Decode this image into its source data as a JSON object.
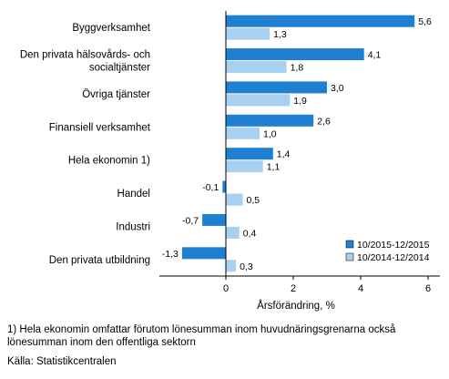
{
  "chart_data": {
    "type": "bar",
    "orientation": "horizontal",
    "categories": [
      [
        "Byggverksamhet"
      ],
      [
        "Den privata hälsovårds- och",
        "socialtjänster"
      ],
      [
        "Övriga tjänster"
      ],
      [
        "Finansiell verksamhet"
      ],
      [
        "Hela ekonomin 1)"
      ],
      [
        "Handel"
      ],
      [
        "Industri"
      ],
      [
        "Den privata utbildning"
      ]
    ],
    "series": [
      {
        "name": "10/2015-12/2015",
        "color": "#1f7fd0",
        "values": [
          5.6,
          4.1,
          3.0,
          2.6,
          1.4,
          -0.1,
          -0.7,
          -1.3
        ],
        "labels": [
          "5,6",
          "4,1",
          "3,0",
          "2,6",
          "1,4",
          "-0,1",
          "-0,7",
          "-1,3"
        ]
      },
      {
        "name": "10/2014-12/2014",
        "color": "#a8d0f0",
        "values": [
          1.3,
          1.8,
          1.9,
          1.0,
          1.1,
          0.5,
          0.4,
          0.3
        ],
        "labels": [
          "1,3",
          "1,8",
          "1,9",
          "1,0",
          "1,1",
          "0,5",
          "0,4",
          "0,3"
        ]
      }
    ],
    "xlim": [
      -2,
      6.2
    ],
    "xticks": [
      0,
      2,
      4,
      6
    ],
    "xtick_labels": [
      "0",
      "2",
      "4",
      "6"
    ],
    "xlabel": "Årsförändring, %",
    "legend_position": "bottom-right",
    "grid": false
  },
  "footnote_lines": [
    "1) Hela ekonomin omfattar förutom lönesumman inom huvudnäringsgrenarna också",
    "lönesumman inom den offentliga sektorn"
  ],
  "source": "Källa: Statistikcentralen"
}
